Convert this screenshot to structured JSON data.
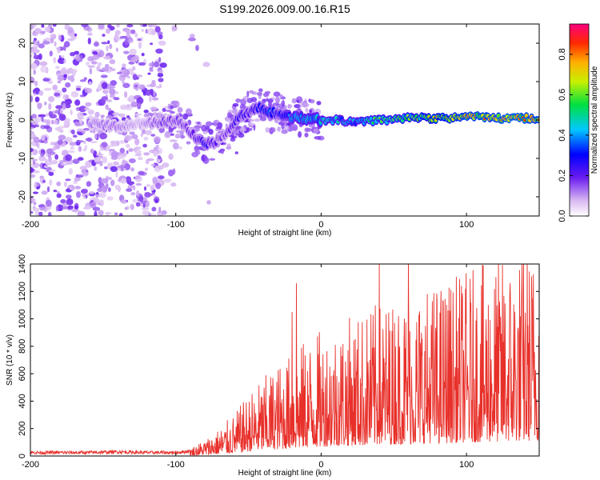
{
  "title": "S199.2026.009.00.16.R15",
  "chart_data": [
    {
      "type": "heatmap",
      "xlabel": "Height of straight line (km)",
      "ylabel": "Frequency (Hz)",
      "xlim": [
        -200,
        150
      ],
      "ylim": [
        -25,
        25
      ],
      "xticks": [
        -200,
        -100,
        0,
        100
      ],
      "yticks": [
        -20,
        -10,
        0,
        10,
        20
      ],
      "colorbar": {
        "label": "Normalized spectral amplitude",
        "range": [
          0,
          0.95
        ],
        "ticks": [
          "0.0",
          "0.2",
          "0.4",
          "0.6",
          "0.8"
        ]
      },
      "ridge": {
        "x": [
          -160,
          -140,
          -125,
          -110,
          -100,
          -95,
          -90,
          -85,
          -80,
          -75,
          -70,
          -65,
          -60,
          -55,
          -50,
          -45,
          -40,
          -35,
          -30,
          -25,
          -20,
          -10,
          0,
          10,
          20,
          30,
          40,
          50,
          60,
          70,
          80,
          90,
          100,
          110,
          120,
          130,
          140,
          150
        ],
        "f": [
          -1,
          -1.5,
          -1,
          -0.5,
          0,
          -1,
          -3,
          -5,
          -6,
          -6,
          -5,
          -3,
          -1,
          1,
          2,
          3,
          3,
          2,
          2,
          1,
          0.5,
          0.5,
          0,
          0,
          -0.5,
          -0.5,
          0,
          0,
          0.5,
          0.5,
          0.5,
          0.5,
          1,
          1,
          0.5,
          0.5,
          0.5,
          0.5
        ],
        "amplitude": [
          0.15,
          0.15,
          0.1,
          0.2,
          0.2,
          0.2,
          0.2,
          0.25,
          0.3,
          0.25,
          0.2,
          0.2,
          0.25,
          0.3,
          0.25,
          0.3,
          0.35,
          0.4,
          0.3,
          0.4,
          0.45,
          0.5,
          0.5,
          0.5,
          0.45,
          0.55,
          0.6,
          0.6,
          0.65,
          0.7,
          0.75,
          0.8,
          0.85,
          0.85,
          0.85,
          0.9,
          0.85,
          0.85
        ]
      }
    },
    {
      "type": "line",
      "xlabel": "Height of straight line (km)",
      "ylabel": "SNR (10 * v/v)",
      "xlim": [
        -200,
        150
      ],
      "ylim": [
        0,
        1400
      ],
      "xticks": [
        -200,
        -100,
        0,
        100
      ],
      "yticks": [
        0,
        200,
        400,
        600,
        800,
        1000,
        1200,
        1400
      ],
      "series": [
        {
          "name": "SNR",
          "color": "#e8302a",
          "x": [
            -200,
            -180,
            -160,
            -140,
            -120,
            -100,
            -90,
            -80,
            -70,
            -60,
            -50,
            -40,
            -30,
            -20,
            -10,
            0,
            10,
            20,
            30,
            40,
            50,
            60,
            70,
            80,
            90,
            100,
            110,
            120,
            130,
            140,
            150
          ],
          "y": [
            20,
            20,
            20,
            25,
            20,
            20,
            30,
            60,
            100,
            150,
            220,
            280,
            330,
            370,
            420,
            450,
            480,
            500,
            520,
            550,
            560,
            580,
            600,
            620,
            640,
            660,
            680,
            700,
            720,
            740,
            750
          ],
          "peaks": [
            {
              "x": -20,
              "y": 1050
            },
            {
              "x": -17,
              "y": 1260
            },
            {
              "x": 40,
              "y": 1420
            },
            {
              "x": 60,
              "y": 1430
            },
            {
              "x": 145,
              "y": 1150
            }
          ]
        }
      ]
    }
  ]
}
